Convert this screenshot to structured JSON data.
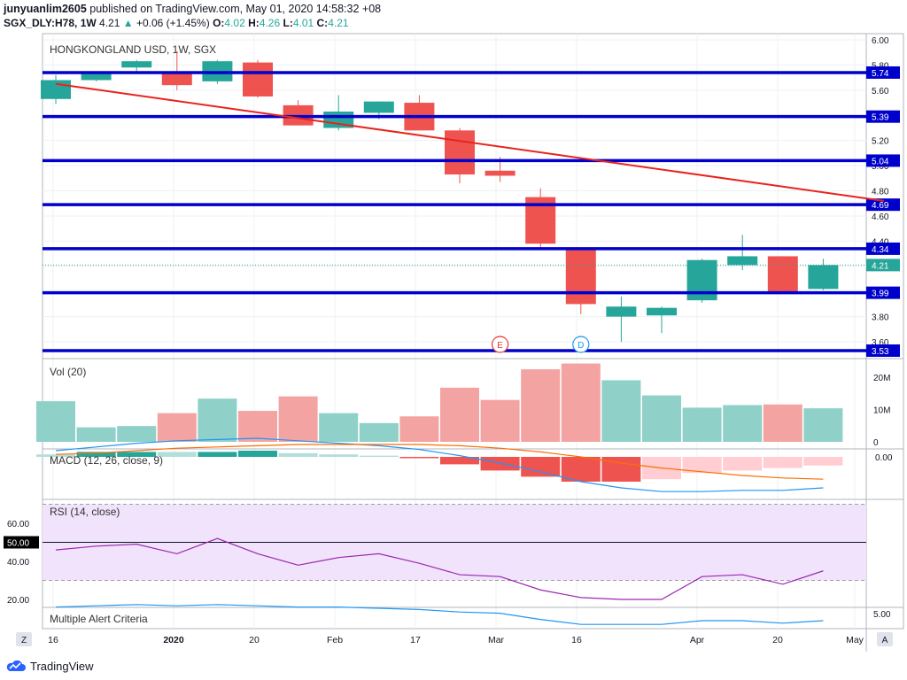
{
  "header": {
    "line1": {
      "user": "junyuanlim2605",
      "text": "published on TradingView.com, May 01, 2020 14:58:32 +08"
    },
    "line2": {
      "symbol": "SGX_DLY:H78, 1W",
      "last": "4.21",
      "change": "+0.06 (+1.45%)",
      "o_label": "O:",
      "o": "4.02",
      "h_label": "H:",
      "h": "4.26",
      "l_label": "L:",
      "l": "4.01",
      "c_label": "C:",
      "c": "4.21"
    }
  },
  "brand": {
    "name": "TradingView"
  },
  "colors": {
    "up": "#26a69a",
    "down": "#ef5350",
    "level": "#0000cc",
    "trend": "#e8231f",
    "macd": "#2196f3",
    "signal": "#ff6d00",
    "rsi": "#9c27b0",
    "alert": "#2196f3"
  },
  "chart_data": [
    {
      "type": "candlestick",
      "title": "HONGKONGLAND USD, 1W, SGX",
      "ylim": [
        3.5,
        6.0
      ],
      "y_ticks": [
        3.6,
        3.8,
        4.0,
        4.2,
        4.4,
        4.6,
        4.8,
        5.0,
        5.2,
        5.4,
        5.6,
        5.8,
        6.0
      ],
      "y_tick_labels": [
        "3.60",
        "3.80",
        "4.00",
        "4.20",
        "4.40",
        "4.60",
        "4.80",
        "5.00",
        "5.20",
        "5.40",
        "5.60",
        "5.80",
        "6.00"
      ],
      "x_labels": [
        "16",
        "2020",
        "20",
        "Feb",
        "17",
        "Mar",
        "16",
        "Apr",
        "20",
        "May"
      ],
      "candles": [
        {
          "o": 5.53,
          "h": 5.72,
          "l": 5.49,
          "c": 5.68
        },
        {
          "o": 5.68,
          "h": 5.75,
          "l": 5.67,
          "c": 5.74
        },
        {
          "o": 5.78,
          "h": 5.84,
          "l": 5.73,
          "c": 5.83
        },
        {
          "o": 5.74,
          "h": 5.91,
          "l": 5.6,
          "c": 5.64
        },
        {
          "o": 5.67,
          "h": 5.84,
          "l": 5.65,
          "c": 5.83
        },
        {
          "o": 5.82,
          "h": 5.84,
          "l": 5.54,
          "c": 5.55
        },
        {
          "o": 5.48,
          "h": 5.52,
          "l": 5.32,
          "c": 5.32
        },
        {
          "o": 5.3,
          "h": 5.56,
          "l": 5.28,
          "c": 5.43
        },
        {
          "o": 5.42,
          "h": 5.51,
          "l": 5.37,
          "c": 5.51
        },
        {
          "o": 5.5,
          "h": 5.56,
          "l": 5.28,
          "c": 5.28
        },
        {
          "o": 5.28,
          "h": 5.3,
          "l": 4.86,
          "c": 4.93
        },
        {
          "o": 4.96,
          "h": 5.07,
          "l": 4.87,
          "c": 4.92
        },
        {
          "o": 4.75,
          "h": 4.82,
          "l": 4.35,
          "c": 4.38
        },
        {
          "o": 4.35,
          "h": 4.34,
          "l": 3.82,
          "c": 3.9
        },
        {
          "o": 3.8,
          "h": 3.96,
          "l": 3.6,
          "c": 3.88
        },
        {
          "o": 3.81,
          "h": 3.88,
          "l": 3.67,
          "c": 3.87
        },
        {
          "o": 3.93,
          "h": 4.26,
          "l": 3.91,
          "c": 4.25
        },
        {
          "o": 4.21,
          "h": 4.45,
          "l": 4.17,
          "c": 4.28
        },
        {
          "o": 4.28,
          "h": 4.27,
          "l": 3.99,
          "c": 4.0
        },
        {
          "o": 4.02,
          "h": 4.26,
          "l": 4.01,
          "c": 4.21
        }
      ],
      "levels": [
        5.74,
        5.39,
        5.04,
        4.69,
        4.34,
        3.99,
        3.53
      ],
      "level_labels": [
        "5.74",
        "5.39",
        "5.04",
        "4.69",
        "4.34",
        "3.99",
        "3.53"
      ],
      "current_price": 4.21,
      "current_label": "4.21",
      "trendline": {
        "start": [
          0,
          5.65
        ],
        "end": [
          20.5,
          4.72
        ]
      },
      "events": [
        {
          "label": "E",
          "bar": 11
        },
        {
          "label": "D",
          "bar": 13
        }
      ]
    },
    {
      "type": "bar",
      "title": "Vol (20)",
      "ylim": [
        0,
        25
      ],
      "y_ticks": [
        0,
        10,
        20
      ],
      "y_tick_labels": [
        "0",
        "10M",
        "20M"
      ],
      "values": [
        12.6,
        4.5,
        4.9,
        8.9,
        13.4,
        9.6,
        14.1,
        8.9,
        5.8,
        7.9,
        16.8,
        13.0,
        22.5,
        24.3,
        19.1,
        14.4,
        10.6,
        11.4,
        11.6,
        10.4
      ],
      "colors": [
        "up",
        "up",
        "up",
        "down",
        "up",
        "down",
        "down",
        "up",
        "up",
        "down",
        "down",
        "down",
        "down",
        "down",
        "up",
        "up",
        "up",
        "up",
        "down",
        "up"
      ]
    },
    {
      "type": "line",
      "title": "MACD (12, 26, close, 9)",
      "y_tick_labels": [
        "0.00"
      ],
      "series": [
        {
          "values": [
            0.05,
            0.08,
            0.11,
            0.13,
            0.14,
            0.15,
            0.13,
            0.11,
            0.09,
            0.06,
            0.01,
            -0.05,
            -0.12,
            -0.2,
            -0.25,
            -0.28,
            -0.28,
            -0.27,
            -0.27,
            -0.25
          ]
        },
        {
          "values": [
            0.02,
            0.03,
            0.05,
            0.07,
            0.08,
            0.09,
            0.1,
            0.1,
            0.1,
            0.1,
            0.09,
            0.07,
            0.04,
            0.0,
            -0.05,
            -0.09,
            -0.12,
            -0.15,
            -0.17,
            -0.18
          ]
        }
      ],
      "histogram": [
        0.02,
        0.04,
        0.04,
        0.04,
        0.04,
        0.05,
        0.03,
        0.02,
        0.01,
        -0.01,
        -0.06,
        -0.11,
        -0.16,
        -0.2,
        -0.2,
        -0.18,
        -0.13,
        -0.11,
        -0.09,
        -0.07
      ],
      "hist_colors": [
        "#b2dfdb",
        "#26a69a",
        "#26a69a",
        "#b2dfdb",
        "#26a69a",
        "#26a69a",
        "#b2dfdb",
        "#b2dfdb",
        "#b2dfdb",
        "#ef5350",
        "#ef5350",
        "#ef5350",
        "#ef5350",
        "#ef5350",
        "#ef5350",
        "#ffcdd2",
        "#ffcdd2",
        "#ffcdd2",
        "#ffcdd2",
        "#ffcdd2"
      ]
    },
    {
      "type": "line",
      "title": "RSI (14, close)",
      "ylim": [
        15,
        75
      ],
      "y_ticks": [
        20,
        40,
        60
      ],
      "y_tick_labels": [
        "20.00",
        "40.00",
        "60.00"
      ],
      "upper_band": 70,
      "lower_band": 30,
      "midline": 50,
      "midline_label": "50.00",
      "values": [
        46,
        48,
        49,
        44,
        52,
        44,
        38,
        42,
        44,
        39,
        33,
        32,
        25,
        21,
        20,
        20,
        32,
        33,
        28,
        35
      ]
    },
    {
      "type": "line",
      "title": "Multiple Alert Criteria",
      "y_tick_labels": [
        "5.00"
      ],
      "values": [
        5.6,
        5.7,
        5.8,
        5.7,
        5.8,
        5.7,
        5.6,
        5.6,
        5.5,
        5.4,
        5.2,
        5.1,
        4.6,
        4.2,
        4.2,
        4.2,
        4.5,
        4.5,
        4.3,
        4.5
      ]
    }
  ]
}
